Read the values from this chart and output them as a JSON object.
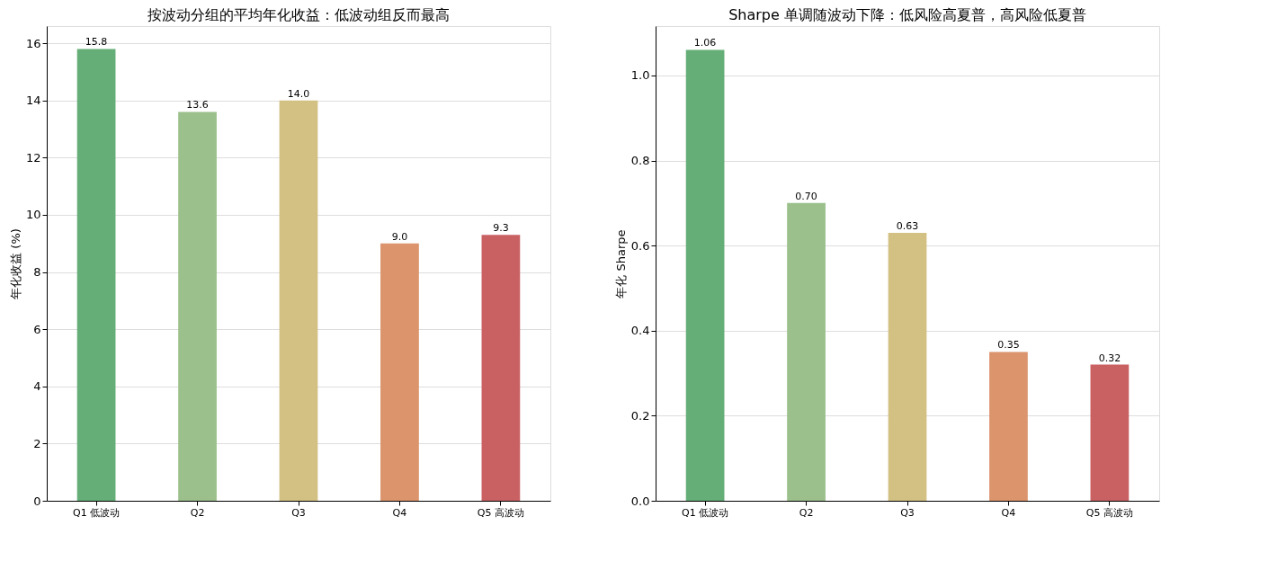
{
  "chart_data": [
    {
      "type": "bar",
      "title": "按波动分组的平均年化收益：低波动组反而最高",
      "ylabel": "年化收益 (%)",
      "categories": [
        "Q1 低波动",
        "Q2",
        "Q3",
        "Q4",
        "Q5 高波动"
      ],
      "values": [
        15.8,
        13.6,
        14.0,
        9.0,
        9.3
      ],
      "value_labels": [
        "15.8",
        "13.6",
        "14.0",
        "9.0",
        "9.3"
      ],
      "colors": [
        "#66ae77",
        "#9bc08b",
        "#d3c183",
        "#db946c",
        "#c96163"
      ],
      "ylim": [
        0,
        16.6
      ],
      "yticks": [
        0,
        2,
        4,
        6,
        8,
        10,
        12,
        14,
        16
      ],
      "grid": "y",
      "legend": false
    },
    {
      "type": "bar",
      "title": "Sharpe 单调随波动下降：低风险高夏普，高风险低夏普",
      "ylabel": "年化 Sharpe",
      "categories": [
        "Q1 低波动",
        "Q2",
        "Q3",
        "Q4",
        "Q5 高波动"
      ],
      "values": [
        1.06,
        0.7,
        0.63,
        0.35,
        0.32
      ],
      "value_labels": [
        "1.06",
        "0.70",
        "0.63",
        "0.35",
        "0.32"
      ],
      "colors": [
        "#66ae77",
        "#9bc08b",
        "#d3c183",
        "#db946c",
        "#c96163"
      ],
      "ylim": [
        0,
        1.116
      ],
      "yticks": [
        {
          "value": 0,
          "label": "0.0"
        },
        {
          "value": 0.2,
          "label": "0.2"
        },
        {
          "value": 0.4,
          "label": "0.4"
        },
        {
          "value": 0.6,
          "label": "0.6"
        },
        {
          "value": 0.8,
          "label": "0.8"
        },
        {
          "value": 1.0,
          "label": "1.0"
        }
      ],
      "grid": "y",
      "legend": false
    }
  ]
}
